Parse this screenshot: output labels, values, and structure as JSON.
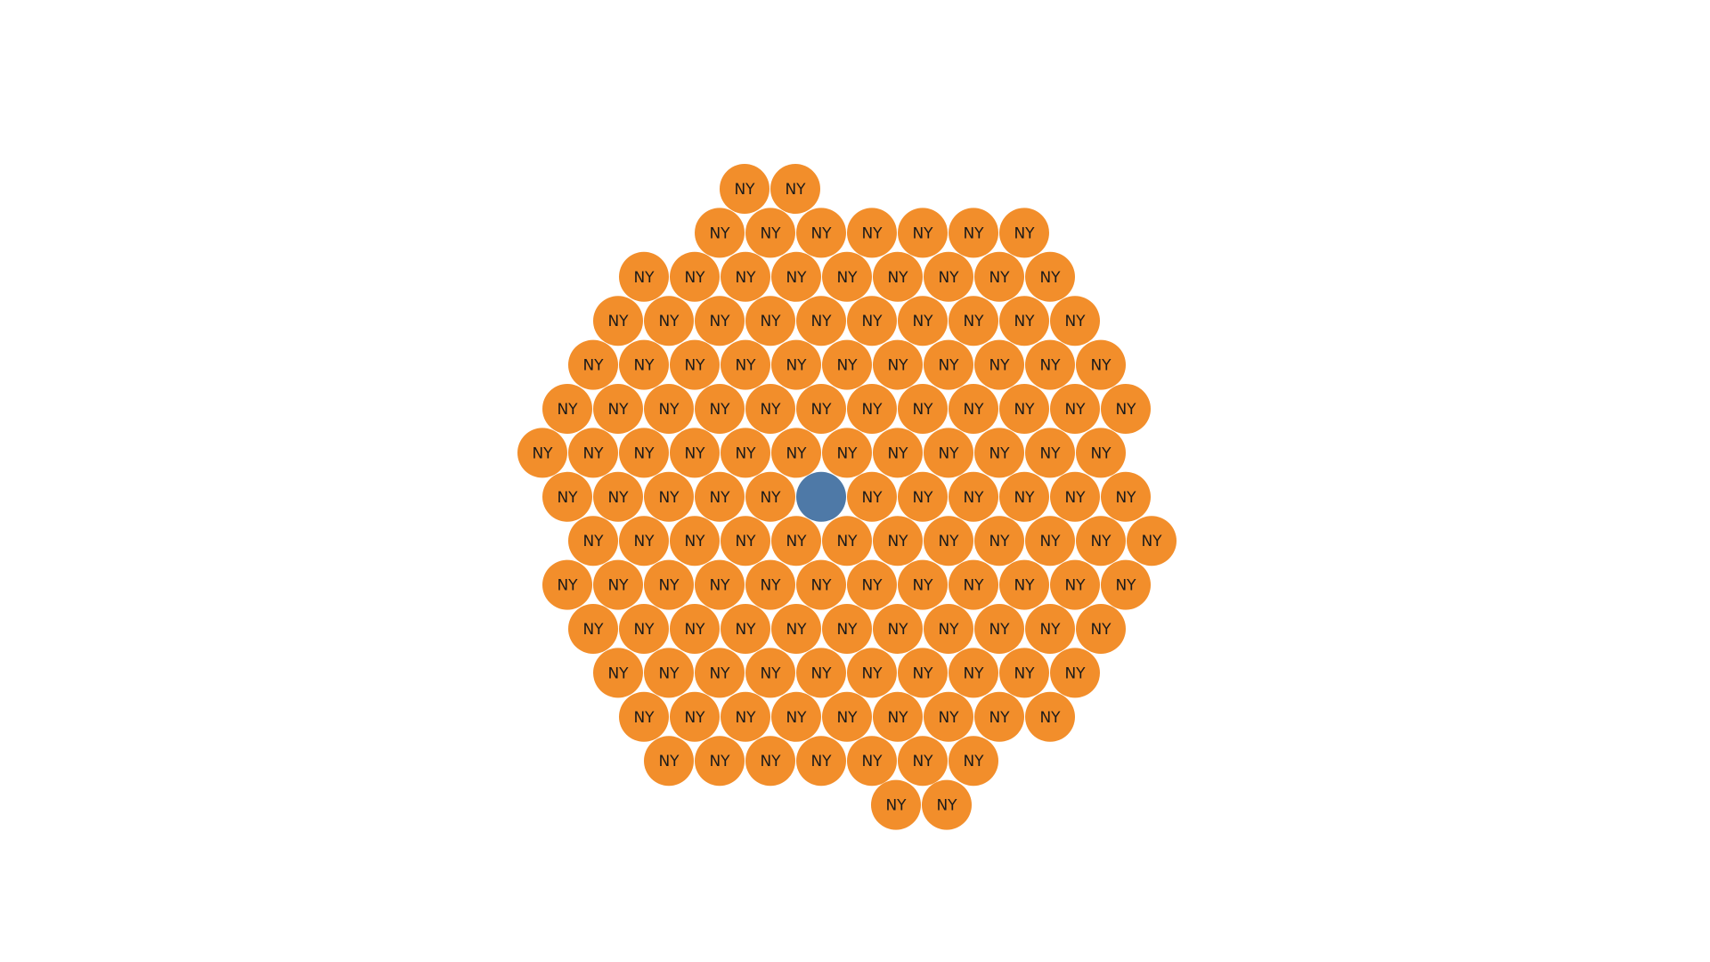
{
  "chart_data": {
    "type": "packed-bubble",
    "title": "",
    "colors": {
      "default": "#F28E2B",
      "highlight": "#4E79A7",
      "label": "#1a1a1a"
    },
    "rows": [
      {
        "marks": [
          {
            "label": "NY"
          },
          {
            "label": "NY"
          }
        ]
      },
      {
        "marks": [
          {
            "label": "NY"
          },
          {
            "label": "NY"
          },
          {
            "label": "NY"
          },
          {
            "label": "NY"
          },
          {
            "label": "NY"
          },
          {
            "label": "NY"
          },
          {
            "label": "NY"
          }
        ]
      },
      {
        "marks": [
          {
            "label": "NY"
          },
          {
            "label": "NY"
          },
          {
            "label": "NY"
          },
          {
            "label": "NY"
          },
          {
            "label": "NY"
          },
          {
            "label": "NY"
          },
          {
            "label": "NY"
          },
          {
            "label": "NY"
          },
          {
            "label": "NY"
          }
        ]
      },
      {
        "marks": [
          {
            "label": "NY"
          },
          {
            "label": "NY"
          },
          {
            "label": "NY"
          },
          {
            "label": "NY"
          },
          {
            "label": "NY"
          },
          {
            "label": "NY"
          },
          {
            "label": "NY"
          },
          {
            "label": "NY"
          },
          {
            "label": "NY"
          },
          {
            "label": "NY"
          }
        ]
      },
      {
        "marks": [
          {
            "label": "NY"
          },
          {
            "label": "NY"
          },
          {
            "label": "NY"
          },
          {
            "label": "NY"
          },
          {
            "label": "NY"
          },
          {
            "label": "NY"
          },
          {
            "label": "NY"
          },
          {
            "label": "NY"
          },
          {
            "label": "NY"
          },
          {
            "label": "NY"
          },
          {
            "label": "NY"
          }
        ]
      },
      {
        "marks": [
          {
            "label": "NY"
          },
          {
            "label": "NY"
          },
          {
            "label": "NY"
          },
          {
            "label": "NY"
          },
          {
            "label": "NY"
          },
          {
            "label": "NY"
          },
          {
            "label": "NY"
          },
          {
            "label": "NY"
          },
          {
            "label": "NY"
          },
          {
            "label": "NY"
          },
          {
            "label": "NY"
          },
          {
            "label": "NY"
          }
        ]
      },
      {
        "marks": [
          {
            "label": "NY"
          },
          {
            "label": "NY"
          },
          {
            "label": "NY"
          },
          {
            "label": "NY"
          },
          {
            "label": "NY"
          },
          {
            "label": "NY"
          },
          {
            "label": "NY"
          },
          {
            "label": "NY"
          },
          {
            "label": "NY"
          },
          {
            "label": "NY"
          },
          {
            "label": "NY"
          },
          {
            "label": "NY"
          }
        ]
      },
      {
        "marks": [
          {
            "label": "NY"
          },
          {
            "label": "NY"
          },
          {
            "label": "NY"
          },
          {
            "label": "NY"
          },
          {
            "label": "NY"
          },
          {
            "label": "",
            "highlight": true
          },
          {
            "label": "NY"
          },
          {
            "label": "NY"
          },
          {
            "label": "NY"
          },
          {
            "label": "NY"
          },
          {
            "label": "NY"
          },
          {
            "label": "NY"
          }
        ]
      },
      {
        "marks": [
          {
            "label": "NY"
          },
          {
            "label": "NY"
          },
          {
            "label": "NY"
          },
          {
            "label": "NY"
          },
          {
            "label": "NY"
          },
          {
            "label": "NY"
          },
          {
            "label": "NY"
          },
          {
            "label": "NY"
          },
          {
            "label": "NY"
          },
          {
            "label": "NY"
          },
          {
            "label": "NY"
          },
          {
            "label": "NY"
          }
        ]
      },
      {
        "marks": [
          {
            "label": "NY"
          },
          {
            "label": "NY"
          },
          {
            "label": "NY"
          },
          {
            "label": "NY"
          },
          {
            "label": "NY"
          },
          {
            "label": "NY"
          },
          {
            "label": "NY"
          },
          {
            "label": "NY"
          },
          {
            "label": "NY"
          },
          {
            "label": "NY"
          },
          {
            "label": "NY"
          },
          {
            "label": "NY"
          }
        ]
      },
      {
        "marks": [
          {
            "label": "NY"
          },
          {
            "label": "NY"
          },
          {
            "label": "NY"
          },
          {
            "label": "NY"
          },
          {
            "label": "NY"
          },
          {
            "label": "NY"
          },
          {
            "label": "NY"
          },
          {
            "label": "NY"
          },
          {
            "label": "NY"
          },
          {
            "label": "NY"
          },
          {
            "label": "NY"
          }
        ]
      },
      {
        "marks": [
          {
            "label": "NY"
          },
          {
            "label": "NY"
          },
          {
            "label": "NY"
          },
          {
            "label": "NY"
          },
          {
            "label": "NY"
          },
          {
            "label": "NY"
          },
          {
            "label": "NY"
          },
          {
            "label": "NY"
          },
          {
            "label": "NY"
          },
          {
            "label": "NY"
          }
        ]
      },
      {
        "marks": [
          {
            "label": "NY"
          },
          {
            "label": "NY"
          },
          {
            "label": "NY"
          },
          {
            "label": "NY"
          },
          {
            "label": "NY"
          },
          {
            "label": "NY"
          },
          {
            "label": "NY"
          },
          {
            "label": "NY"
          },
          {
            "label": "NY"
          }
        ]
      },
      {
        "marks": [
          {
            "label": "NY"
          },
          {
            "label": "NY"
          },
          {
            "label": "NY"
          },
          {
            "label": "NY"
          },
          {
            "label": "NY"
          },
          {
            "label": "NY"
          },
          {
            "label": "NY"
          }
        ]
      },
      {
        "marks": [
          {
            "label": "NY"
          },
          {
            "label": "NY"
          }
        ]
      }
    ]
  }
}
